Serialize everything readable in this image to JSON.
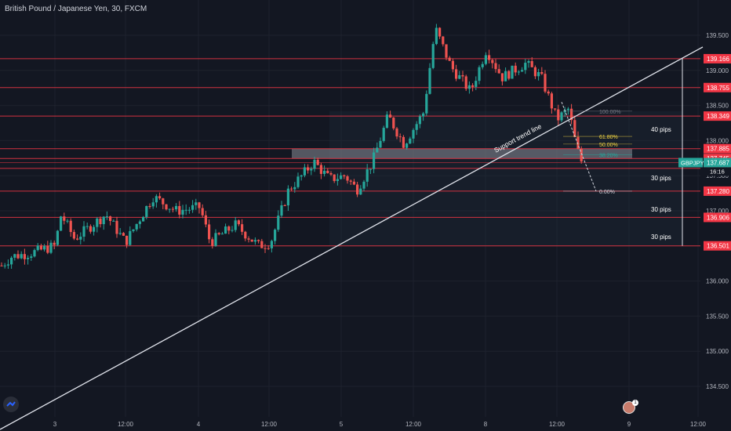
{
  "chart_title": "British Pound / Japanese Yen, 30, FXCM",
  "colors": {
    "bg": "#131722",
    "up": "#26a69a",
    "down": "#ef5350",
    "level": "#f23645",
    "grid": "#1e222d",
    "text": "#b2b5be",
    "fib_yellow": "#f5d742",
    "fib_teal": "#26a69a"
  },
  "chart_data": {
    "type": "candlestick",
    "symbol": "GBPJPY",
    "ylim": [
      134.25,
      139.85
    ],
    "y_ticks": [
      "139.500",
      "139.000",
      "138.500",
      "138.000",
      "137.500",
      "137.000",
      "136.500",
      "136.000",
      "135.500",
      "135.000",
      "134.500"
    ],
    "x_ticks": [
      "3",
      "12:00",
      "4",
      "12:00",
      "5",
      "12:00",
      "8",
      "12:00",
      "9",
      "12:00"
    ],
    "last_price": "137.687",
    "countdown": "16:16",
    "price_levels": [
      "139.166",
      "138.755",
      "138.349",
      "137.885",
      "137.745",
      "137.604",
      "137.280",
      "136.906",
      "136.501"
    ],
    "fib_levels": [
      {
        "label": "100.00%",
        "price": 138.42,
        "color": "gray"
      },
      {
        "label": "61.80%",
        "price": 138.06,
        "color": "yellow"
      },
      {
        "label": "50.00%",
        "price": 137.95,
        "color": "yellow"
      },
      {
        "label": "38.20%",
        "price": 137.8,
        "color": "teal"
      },
      {
        "label": "0.00%",
        "price": 137.28,
        "color": "white"
      }
    ],
    "annotations": {
      "trend_line": "Support trend line",
      "pips": [
        "40 pips",
        "30 pips",
        "30 pips",
        "30 pips"
      ]
    }
  }
}
